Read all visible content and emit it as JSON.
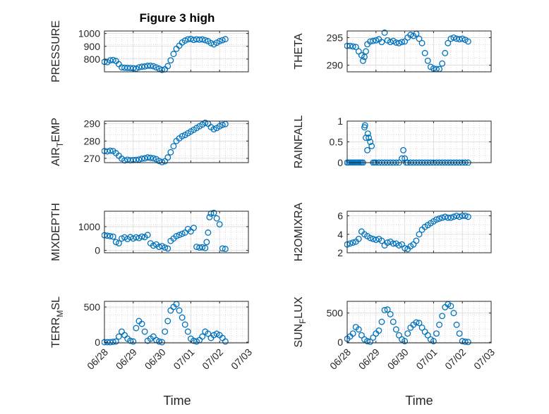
{
  "title": "Figure 3 high",
  "xlabel": "Time",
  "x_ticks": [
    "06/28",
    "06/29",
    "06/30",
    "07/01",
    "07/02",
    "07/03"
  ],
  "colors": {
    "marker": "#0072bd",
    "axis": "#262626",
    "grid": "#d9d9d9"
  },
  "chart_data": [
    {
      "id": "pressure",
      "type": "scatter",
      "ylabel": "PRESSURE",
      "ylabel_sub": "",
      "ylim": [
        700,
        1020
      ],
      "yticks": [
        800,
        900,
        1000
      ],
      "xlim": [
        0,
        5.0
      ],
      "grid": true,
      "x": [
        0,
        0.1,
        0.2,
        0.3,
        0.4,
        0.5,
        0.6,
        0.7,
        0.8,
        0.9,
        1.0,
        1.1,
        1.2,
        1.3,
        1.4,
        1.5,
        1.6,
        1.7,
        1.8,
        1.9,
        2.0,
        2.1,
        2.2,
        2.3,
        2.4,
        2.5,
        2.6,
        2.7,
        2.8,
        2.9,
        3.0,
        3.1,
        3.2,
        3.3,
        3.4,
        3.5,
        3.6,
        3.7,
        3.8,
        3.9,
        4.0,
        4.1,
        4.2
      ],
      "y": [
        778,
        776,
        790,
        793,
        785,
        760,
        735,
        732,
        731,
        730,
        728,
        725,
        735,
        740,
        742,
        747,
        748,
        744,
        735,
        725,
        715,
        720,
        745,
        790,
        840,
        880,
        905,
        930,
        945,
        955,
        958,
        950,
        955,
        952,
        954,
        948,
        940,
        925,
        915,
        928,
        940,
        948,
        956
      ]
    },
    {
      "id": "theta",
      "type": "scatter",
      "ylabel": "THETA",
      "ylabel_sub": "",
      "ylim": [
        288.8,
        296.2
      ],
      "yticks": [
        290,
        295
      ],
      "xlim": [
        0,
        5.0
      ],
      "grid": true,
      "x": [
        0,
        0.1,
        0.2,
        0.3,
        0.4,
        0.5,
        0.55,
        0.6,
        0.65,
        0.7,
        0.8,
        0.9,
        1.0,
        1.1,
        1.2,
        1.3,
        1.4,
        1.5,
        1.6,
        1.7,
        1.8,
        1.9,
        2.0,
        2.1,
        2.2,
        2.3,
        2.4,
        2.5,
        2.6,
        2.7,
        2.8,
        2.9,
        3.0,
        3.1,
        3.2,
        3.3,
        3.4,
        3.5,
        3.6,
        3.7,
        3.8,
        3.9,
        4.0,
        4.1,
        4.2
      ],
      "y": [
        293.5,
        293.5,
        293.4,
        293.3,
        292.5,
        291.8,
        290.8,
        291.5,
        292.5,
        293.8,
        294.3,
        294.4,
        294.5,
        294.7,
        294.2,
        295.9,
        294.5,
        294.2,
        294.4,
        294.1,
        294.0,
        294.2,
        294.3,
        295.0,
        295.5,
        295.3,
        295.7,
        294.8,
        294.0,
        292.2,
        290.8,
        289.7,
        289.4,
        289.3,
        289.3,
        290.3,
        292.2,
        294.0,
        294.8,
        295.0,
        294.8,
        294.7,
        294.8,
        294.6,
        294.3
      ]
    },
    {
      "id": "air_temp",
      "type": "scatter",
      "ylabel": "AIR",
      "ylabel_sub": "T",
      "ylabel_rest": "EMP",
      "ylim": [
        267.5,
        291.5
      ],
      "yticks": [
        270,
        280,
        290
      ],
      "xlim": [
        0,
        5.0
      ],
      "grid": true,
      "x": [
        0,
        0.1,
        0.2,
        0.3,
        0.4,
        0.5,
        0.6,
        0.7,
        0.8,
        0.9,
        1.0,
        1.1,
        1.2,
        1.3,
        1.4,
        1.5,
        1.6,
        1.7,
        1.8,
        1.9,
        2.0,
        2.1,
        2.2,
        2.3,
        2.4,
        2.5,
        2.6,
        2.7,
        2.8,
        2.9,
        3.0,
        3.1,
        3.2,
        3.3,
        3.4,
        3.5,
        3.6,
        3.7,
        3.8,
        3.9,
        4.0,
        4.1,
        4.2
      ],
      "y": [
        274.2,
        274.0,
        274.4,
        274.2,
        273.0,
        271.5,
        269.8,
        268.8,
        269.2,
        268.9,
        269.0,
        269.1,
        269.3,
        269.8,
        270.0,
        270.5,
        270.3,
        270.0,
        269.5,
        268.5,
        267.8,
        268.3,
        270.5,
        273.5,
        277.0,
        280.0,
        281.5,
        282.8,
        283.5,
        284.5,
        285.5,
        286.5,
        287.5,
        288.5,
        289.5,
        290.5,
        290.0,
        288.0,
        286.8,
        287.5,
        288.5,
        289.3,
        289.8
      ]
    },
    {
      "id": "rainfall",
      "type": "scatter",
      "ylabel": "RAINFALL",
      "ylabel_sub": "",
      "ylim": [
        0,
        1
      ],
      "yticks": [
        0,
        0.5,
        1
      ],
      "xlim": [
        0,
        5.0
      ],
      "grid": true,
      "x": [
        0,
        0.05,
        0.1,
        0.15,
        0.2,
        0.25,
        0.3,
        0.35,
        0.4,
        0.45,
        0.5,
        0.55,
        0.6,
        0.62,
        0.65,
        0.7,
        0.72,
        0.75,
        0.8,
        0.85,
        0.9,
        0.95,
        1.0,
        1.1,
        1.2,
        1.3,
        1.4,
        1.5,
        1.6,
        1.7,
        1.8,
        1.9,
        1.95,
        2.0,
        2.05,
        2.1,
        2.2,
        2.3,
        2.4,
        2.5,
        2.6,
        2.7,
        2.8,
        2.9,
        3.0,
        3.1,
        3.2,
        3.3,
        3.4,
        3.5,
        3.6,
        3.7,
        3.8,
        3.9,
        4.0,
        4.1,
        4.2
      ],
      "y": [
        0,
        0,
        0,
        0,
        0,
        0,
        0,
        0,
        0,
        0,
        0,
        0,
        0.85,
        0.9,
        0.6,
        0.3,
        0.7,
        0.6,
        0.5,
        0.4,
        0,
        0,
        0,
        0,
        0,
        0,
        0,
        0,
        0,
        0,
        0,
        0.1,
        0.3,
        0.1,
        0,
        0,
        0,
        0,
        0,
        0,
        0,
        0,
        0,
        0,
        0,
        0,
        0,
        0,
        0,
        0,
        0,
        0,
        0,
        0,
        0,
        0,
        0
      ]
    },
    {
      "id": "mixdepth",
      "type": "scatter",
      "ylabel": "MIXDEPTH",
      "ylabel_sub": "",
      "ylim": [
        -100,
        1650
      ],
      "yticks": [
        0,
        1000
      ],
      "xlim": [
        0,
        5.0
      ],
      "grid": true,
      "x": [
        0,
        0.1,
        0.2,
        0.3,
        0.4,
        0.5,
        0.6,
        0.7,
        0.8,
        0.9,
        1.0,
        1.1,
        1.2,
        1.3,
        1.4,
        1.5,
        1.6,
        1.7,
        1.8,
        1.9,
        2.0,
        2.1,
        2.2,
        2.3,
        2.4,
        2.5,
        2.6,
        2.7,
        2.8,
        2.9,
        3.0,
        3.1,
        3.2,
        3.3,
        3.4,
        3.5,
        3.55,
        3.6,
        3.65,
        3.7,
        3.8,
        3.9,
        4.0,
        4.1,
        4.2
      ],
      "y": [
        640,
        620,
        600,
        580,
        350,
        300,
        500,
        550,
        480,
        560,
        500,
        550,
        520,
        580,
        560,
        650,
        300,
        200,
        250,
        150,
        180,
        120,
        80,
        400,
        500,
        600,
        650,
        700,
        750,
        900,
        800,
        950,
        150,
        120,
        130,
        100,
        350,
        750,
        1400,
        1550,
        1580,
        1350,
        1100,
        80,
        60
      ]
    },
    {
      "id": "h2omixra",
      "type": "scatter",
      "ylabel": "H2OMIXRA",
      "ylabel_sub": "",
      "ylim": [
        2,
        6.5
      ],
      "yticks": [
        2,
        4,
        6
      ],
      "xlim": [
        0,
        5.0
      ],
      "grid": true,
      "x": [
        0,
        0.1,
        0.2,
        0.3,
        0.4,
        0.5,
        0.6,
        0.7,
        0.8,
        0.9,
        1.0,
        1.1,
        1.2,
        1.3,
        1.4,
        1.5,
        1.6,
        1.7,
        1.8,
        1.9,
        2.0,
        2.1,
        2.2,
        2.3,
        2.4,
        2.5,
        2.6,
        2.7,
        2.8,
        2.9,
        3.0,
        3.1,
        3.2,
        3.3,
        3.4,
        3.5,
        3.6,
        3.7,
        3.8,
        3.9,
        4.0,
        4.1,
        4.2
      ],
      "y": [
        2.9,
        3.0,
        3.1,
        3.2,
        3.5,
        4.3,
        4.0,
        3.8,
        3.6,
        3.5,
        3.4,
        3.5,
        3.3,
        2.8,
        3.1,
        3.2,
        3.0,
        3.0,
        2.8,
        2.9,
        2.5,
        2.4,
        2.7,
        2.9,
        3.3,
        4.0,
        4.5,
        4.8,
        5.0,
        5.2,
        5.4,
        5.6,
        5.7,
        5.8,
        5.9,
        5.8,
        5.8,
        5.9,
        6.0,
        5.9,
        6.0,
        6.0,
        5.9
      ]
    },
    {
      "id": "terr_msl",
      "type": "scatter",
      "ylabel": "TERR",
      "ylabel_sub": "M",
      "ylabel_rest": "SL",
      "ylim": [
        -10,
        580
      ],
      "yticks": [
        0,
        500
      ],
      "xlim": [
        0,
        5.0
      ],
      "grid": true,
      "x": [
        0,
        0.1,
        0.2,
        0.3,
        0.4,
        0.5,
        0.6,
        0.7,
        0.8,
        0.9,
        1.0,
        1.1,
        1.2,
        1.3,
        1.4,
        1.5,
        1.6,
        1.7,
        1.8,
        1.9,
        2.0,
        2.1,
        2.2,
        2.3,
        2.4,
        2.5,
        2.6,
        2.7,
        2.8,
        2.9,
        3.0,
        3.1,
        3.2,
        3.3,
        3.4,
        3.5,
        3.6,
        3.7,
        3.8,
        3.9,
        4.0,
        4.1,
        4.2
      ],
      "y": [
        0,
        0,
        0,
        5,
        10,
        80,
        150,
        100,
        50,
        20,
        10,
        200,
        300,
        260,
        150,
        20,
        50,
        80,
        30,
        10,
        0,
        150,
        300,
        450,
        500,
        540,
        450,
        350,
        250,
        150,
        50,
        20,
        10,
        30,
        80,
        150,
        120,
        60,
        100,
        120,
        100,
        60,
        10
      ]
    },
    {
      "id": "sun_flux",
      "type": "scatter",
      "ylabel": "SUN",
      "ylabel_sub": "F",
      "ylabel_rest": "LUX",
      "ylim": [
        -10,
        700
      ],
      "yticks": [
        0,
        500
      ],
      "xlim": [
        0,
        5.0
      ],
      "grid": true,
      "x": [
        0,
        0.1,
        0.2,
        0.3,
        0.4,
        0.5,
        0.6,
        0.7,
        0.8,
        0.9,
        1.0,
        1.1,
        1.2,
        1.3,
        1.4,
        1.5,
        1.6,
        1.7,
        1.8,
        1.9,
        2.0,
        2.1,
        2.2,
        2.3,
        2.4,
        2.5,
        2.6,
        2.7,
        2.8,
        2.9,
        3.0,
        3.1,
        3.2,
        3.3,
        3.4,
        3.5,
        3.6,
        3.7,
        3.8,
        3.9,
        4.0,
        4.1,
        4.2
      ],
      "y": [
        60,
        100,
        150,
        260,
        220,
        120,
        50,
        20,
        10,
        80,
        150,
        200,
        350,
        550,
        560,
        480,
        350,
        220,
        120,
        50,
        20,
        150,
        250,
        300,
        340,
        330,
        250,
        180,
        120,
        50,
        20,
        150,
        300,
        450,
        600,
        650,
        620,
        500,
        300,
        150,
        20,
        10,
        5
      ]
    }
  ]
}
